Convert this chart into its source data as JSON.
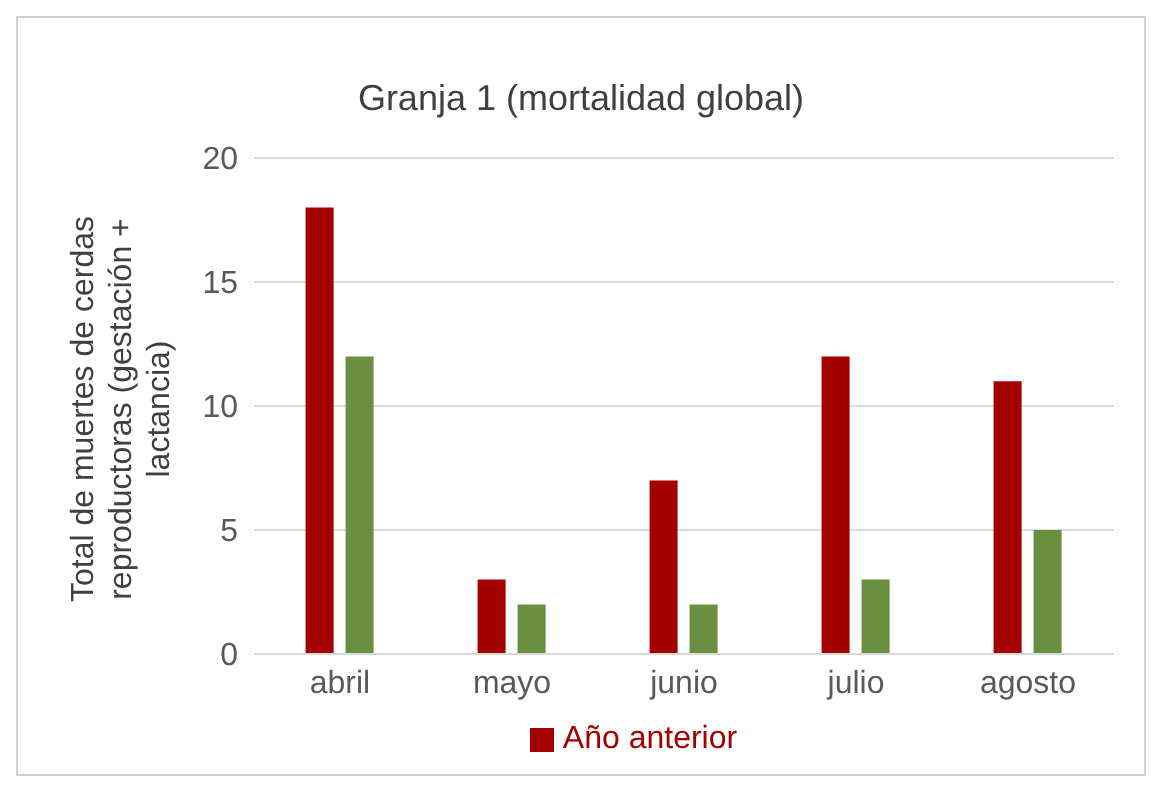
{
  "chart_data": {
    "type": "bar",
    "title": "Granja 1 (mortalidad global)",
    "ylabel": "Total de muertes de cerdas reproductoras (gestación + lactancia)",
    "categories": [
      "abril",
      "mayo",
      "junio",
      "julio",
      "agosto"
    ],
    "series": [
      {
        "name": "Año anterior",
        "color": "#a50000",
        "values": [
          18,
          3,
          7,
          12,
          11
        ]
      },
      {
        "color": "#6a8f3e",
        "values": [
          12,
          2,
          2,
          3,
          5
        ]
      }
    ],
    "ylim": [
      0,
      20
    ],
    "yticks": [
      0,
      5,
      10,
      15,
      20
    ],
    "grid": "y",
    "legend": "bottom"
  }
}
